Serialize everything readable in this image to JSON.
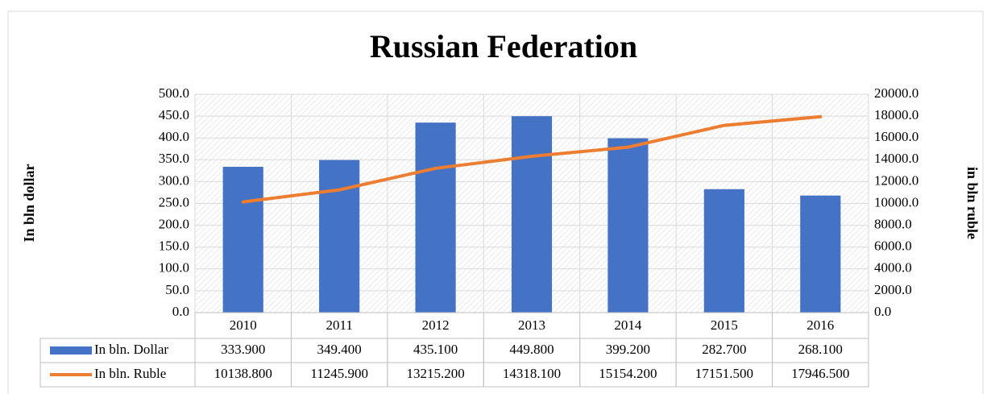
{
  "chart_data": {
    "type": "bar-line",
    "title": "Russian Federation",
    "y_label": "In bln dollar",
    "y2_label": "in bln ruble",
    "categories": [
      "2010",
      "2011",
      "2012",
      "2013",
      "2014",
      "2015",
      "2016"
    ],
    "series": [
      {
        "name": "In bln. Dollar",
        "type": "bar",
        "color": "#4472c4",
        "values": [
          333.9,
          349.4,
          435.1,
          449.8,
          399.2,
          282.7,
          268.1
        ],
        "value_labels": [
          "333.900",
          "349.400",
          "435.100",
          "449.800",
          "399.200",
          "282.700",
          "268.100"
        ]
      },
      {
        "name": "In bln. Ruble",
        "type": "line",
        "axis": "y2",
        "color": "#ed7d31",
        "values": [
          10138.8,
          11245.9,
          13215.2,
          14318.1,
          15154.2,
          17151.5,
          17946.5
        ],
        "value_labels": [
          "10138.800",
          "11245.900",
          "13215.200",
          "14318.100",
          "15154.200",
          "17151.500",
          "17946.500"
        ]
      }
    ],
    "ylim": [
      0,
      500
    ],
    "yticks": [
      {
        "value": 0,
        "label": "0.0"
      },
      {
        "value": 50,
        "label": "50.0"
      },
      {
        "value": 100,
        "label": "100.0"
      },
      {
        "value": 150,
        "label": "150.0"
      },
      {
        "value": 200,
        "label": "200.0"
      },
      {
        "value": 250,
        "label": "250.0"
      },
      {
        "value": 300,
        "label": "300.0"
      },
      {
        "value": 350,
        "label": "350.0"
      },
      {
        "value": 400,
        "label": "400.0"
      },
      {
        "value": 450,
        "label": "450.0"
      },
      {
        "value": 500,
        "label": "500.0"
      }
    ],
    "y2lim": [
      0,
      20000
    ],
    "y2ticks": [
      {
        "value": 0,
        "label": "0.0"
      },
      {
        "value": 2000,
        "label": "2000.0"
      },
      {
        "value": 4000,
        "label": "4000.0"
      },
      {
        "value": 6000,
        "label": "6000.0"
      },
      {
        "value": 8000,
        "label": "8000.0"
      },
      {
        "value": 10000,
        "label": "10000.0"
      },
      {
        "value": 12000,
        "label": "12000.0"
      },
      {
        "value": 14000,
        "label": "14000.0"
      },
      {
        "value": 16000,
        "label": "16000.0"
      },
      {
        "value": 18000,
        "label": "18000.0"
      },
      {
        "value": 20000,
        "label": "20000.0"
      }
    ],
    "grid": true,
    "data_table": true
  }
}
